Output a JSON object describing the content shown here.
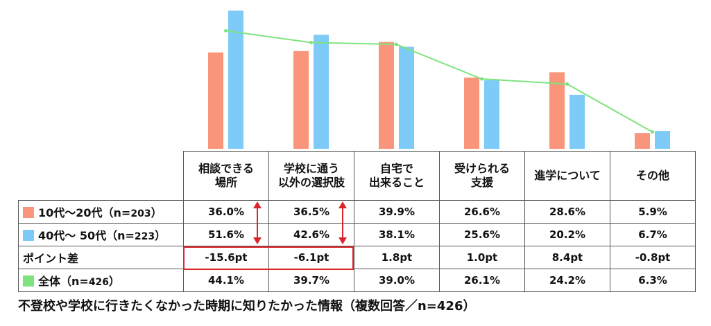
{
  "chart_data": {
    "type": "bar",
    "categories": [
      "相談できる\n場所",
      "学校に通う\n以外の選択肢",
      "自宅で\n出来ること",
      "受けられる\n支援",
      "進学について",
      "その他"
    ],
    "series": [
      {
        "name": "10代～20代（n=203）",
        "values": [
          36.0,
          36.5,
          39.9,
          26.6,
          28.6,
          5.9
        ],
        "color": "#f9957a"
      },
      {
        "name": "40代～ 50代（n=223）",
        "values": [
          51.6,
          42.6,
          38.1,
          25.6,
          20.2,
          6.7
        ],
        "color": "#7ecbf7"
      }
    ],
    "line": {
      "name": "全体（n=426）",
      "values": [
        44.1,
        39.7,
        39.0,
        26.1,
        24.2,
        6.3
      ],
      "color": "#7ee37e"
    },
    "ylim": [
      0,
      53
    ],
    "grid": false
  },
  "table": {
    "headers": [
      "相談できる\n場所",
      "学校に通う\n以外の選択肢",
      "自宅で\n出来ること",
      "受けられる\n支援",
      "進学について",
      "その他"
    ],
    "rows": [
      {
        "label": "10代～20代（n=",
        "n": "203",
        "close": "）",
        "swatch": "#f9957a",
        "values": [
          "36.0%",
          "36.5%",
          "39.9%",
          "26.6%",
          "28.6%",
          "5.9%"
        ]
      },
      {
        "label": "40代～ 50代（n=",
        "n": "223",
        "close": "）",
        "swatch": "#7ecbf7",
        "values": [
          "51.6%",
          "42.6%",
          "38.1%",
          "25.6%",
          "20.2%",
          "6.7%"
        ]
      },
      {
        "label": "ポイント差",
        "n": "",
        "close": "",
        "swatch": "",
        "values": [
          "-15.6pt",
          "-6.1pt",
          "1.8pt",
          "1.0pt",
          "8.4pt",
          "-0.8pt"
        ]
      },
      {
        "label": "全体（n=",
        "n": "426",
        "close": "）",
        "swatch": "#7ee37e",
        "values": [
          "44.1%",
          "39.7%",
          "39.0%",
          "26.1%",
          "24.2%",
          "6.3%"
        ]
      }
    ]
  },
  "highlight_color": "#d9262c",
  "caption": "不登校や学校に行きたくなかった時期に知りたかった情報（複数回答／n=426）"
}
